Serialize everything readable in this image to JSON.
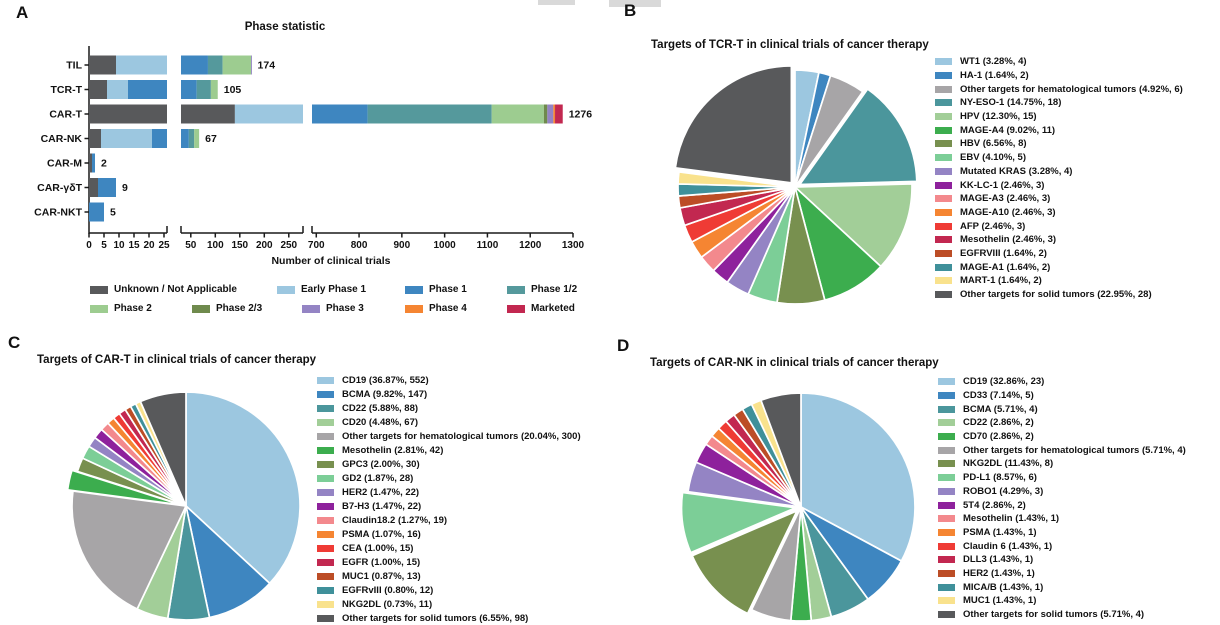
{
  "chart_data": [
    {
      "panel": "A",
      "type": "bar",
      "title": "Phase statistic",
      "xlabel": "Number of clinical trials",
      "orientation": "horizontal-stacked",
      "axis_break": true,
      "categories": [
        "TIL",
        "TCR-T",
        "CAR-T",
        "CAR-NK",
        "CAR-M",
        "CAR-γδT",
        "CAR-NKT"
      ],
      "totals": [
        174,
        105,
        1276,
        67,
        2,
        9,
        5
      ],
      "series": [
        {
          "name": "Unknown / Not Applicable",
          "color": "#58595B",
          "values": [
            9,
            6,
            140,
            4,
            1,
            3,
            0
          ]
        },
        {
          "name": "Early Phase 1",
          "color": "#9CC7E0",
          "values": [
            18,
            7,
            160,
            17,
            0,
            0,
            0
          ]
        },
        {
          "name": "Phase 1",
          "color": "#3E86C0",
          "values": [
            58,
            49,
            520,
            25,
            1,
            6,
            5
          ]
        },
        {
          "name": "Phase 1/2",
          "color": "#55999C",
          "values": [
            30,
            29,
            290,
            11,
            0,
            0,
            0
          ]
        },
        {
          "name": "Phase 2",
          "color": "#9DCC90",
          "values": [
            58,
            14,
            122,
            10,
            0,
            0,
            0
          ]
        },
        {
          "name": "Phase 2/3",
          "color": "#6F8A4D",
          "values": [
            0,
            0,
            8,
            0,
            0,
            0,
            0
          ]
        },
        {
          "name": "Phase 3",
          "color": "#9484C4",
          "values": [
            1,
            0,
            14,
            0,
            0,
            0,
            0
          ]
        },
        {
          "name": "Phase 4",
          "color": "#F58532",
          "values": [
            0,
            0,
            4,
            0,
            0,
            0,
            0
          ]
        },
        {
          "name": "Marketed",
          "color": "#C22850",
          "values": [
            0,
            0,
            18,
            0,
            0,
            0,
            0
          ]
        }
      ],
      "axis_segments": [
        {
          "ticks": [
            0,
            5,
            10,
            15,
            20,
            25
          ]
        },
        {
          "ticks": [
            50,
            100,
            150,
            200,
            250
          ]
        },
        {
          "ticks": [
            700,
            800,
            900,
            1000,
            1100,
            1200,
            1300
          ]
        }
      ]
    },
    {
      "panel": "B",
      "type": "pie",
      "title": "Targets of TCR-T in clinical trials of cancer therapy",
      "slices": [
        {
          "label": "WT1 (3.28%, 4)",
          "value": 3.28,
          "color": "#9CC7E0"
        },
        {
          "label": "HA-1 (1.64%, 2)",
          "value": 1.64,
          "color": "#3E86C0"
        },
        {
          "label": "Other targets for hematological tumors (4.92%, 6)",
          "value": 4.92,
          "color": "#A7A5A7"
        },
        {
          "label": "NY-ESO-1 (14.75%, 18)",
          "value": 14.75,
          "color": "#4B969C",
          "explode": true
        },
        {
          "label": "HPV (12.30%, 15)",
          "value": 12.3,
          "color": "#A2CE98"
        },
        {
          "label": "MAGE-A4 (9.02%, 11)",
          "value": 9.02,
          "color": "#3CAD4E"
        },
        {
          "label": "HBV (6.56%, 8)",
          "value": 6.56,
          "color": "#78904F"
        },
        {
          "label": "EBV (4.10%, 5)",
          "value": 4.1,
          "color": "#7CCE97"
        },
        {
          "label": "Mutated KRAS (3.28%, 4)",
          "value": 3.28,
          "color": "#9484C4"
        },
        {
          "label": "KK-LC-1 (2.46%, 3)",
          "value": 2.46,
          "color": "#8E219C"
        },
        {
          "label": "MAGE-A3 (2.46%, 3)",
          "value": 2.46,
          "color": "#F3898D"
        },
        {
          "label": "MAGE-A10 (2.46%, 3)",
          "value": 2.46,
          "color": "#F58532"
        },
        {
          "label": "AFP (2.46%, 3)",
          "value": 2.46,
          "color": "#EF3B35"
        },
        {
          "label": "Mesothelin (2.46%, 3)",
          "value": 2.46,
          "color": "#C22850"
        },
        {
          "label": "EGFRVIII (1.64%, 2)",
          "value": 1.64,
          "color": "#BC4D26"
        },
        {
          "label": "MAGE-A1 (1.64%, 2)",
          "value": 1.64,
          "color": "#3F909A"
        },
        {
          "label": "MART-1 (1.64%, 2)",
          "value": 1.64,
          "color": "#F9E28D"
        },
        {
          "label": "Other targets for solid tumors (22.95%, 28)",
          "value": 22.95,
          "color": "#58595B",
          "explode": true
        }
      ]
    },
    {
      "panel": "C",
      "type": "pie",
      "title": "Targets of CAR-T in clinical trials of cancer therapy",
      "slices": [
        {
          "label": "CD19 (36.87%, 552)",
          "value": 36.87,
          "color": "#9CC7E0"
        },
        {
          "label": "BCMA (9.82%, 147)",
          "value": 9.82,
          "color": "#3E86C0"
        },
        {
          "label": "CD22 (5.88%, 88)",
          "value": 5.88,
          "color": "#4B969C"
        },
        {
          "label": "CD20 (4.48%, 67)",
          "value": 4.48,
          "color": "#A2CE98"
        },
        {
          "label": "Other targets for hematological tumors (20.04%, 300)",
          "value": 20.04,
          "color": "#A7A5A7"
        },
        {
          "label": "Mesothelin (2.81%, 42)",
          "value": 2.81,
          "color": "#3CAD4E",
          "explode": true
        },
        {
          "label": "GPC3 (2.00%, 30)",
          "value": 2.0,
          "color": "#78904F"
        },
        {
          "label": "GD2 (1.87%, 28)",
          "value": 1.87,
          "color": "#7CCE97"
        },
        {
          "label": "HER2 (1.47%, 22)",
          "value": 1.47,
          "color": "#9484C4"
        },
        {
          "label": "B7-H3 (1.47%, 22)",
          "value": 1.47,
          "color": "#8E219C"
        },
        {
          "label": "Claudin18.2 (1.27%, 19)",
          "value": 1.27,
          "color": "#F3898D"
        },
        {
          "label": "PSMA (1.07%, 16)",
          "value": 1.07,
          "color": "#F58532"
        },
        {
          "label": "CEA (1.00%, 15)",
          "value": 1.0,
          "color": "#EF3B35"
        },
        {
          "label": "EGFR (1.00%, 15)",
          "value": 1.0,
          "color": "#C22850"
        },
        {
          "label": "MUC1 (0.87%, 13)",
          "value": 0.87,
          "color": "#BC4D26"
        },
        {
          "label": "EGFRvIII (0.80%, 12)",
          "value": 0.8,
          "color": "#3F909A"
        },
        {
          "label": "NKG2DL (0.73%, 11)",
          "value": 0.73,
          "color": "#F9E28D"
        },
        {
          "label": "Other targets for solid tumors (6.55%, 98)",
          "value": 6.55,
          "color": "#58595B"
        }
      ]
    },
    {
      "panel": "D",
      "type": "pie",
      "title": "Targets of CAR-NK in clinical trials of cancer therapy",
      "slices": [
        {
          "label": "CD19 (32.86%, 23)",
          "value": 32.86,
          "color": "#9CC7E0"
        },
        {
          "label": "CD33 (7.14%, 5)",
          "value": 7.14,
          "color": "#3E86C0"
        },
        {
          "label": "BCMA (5.71%, 4)",
          "value": 5.71,
          "color": "#4B969C"
        },
        {
          "label": "CD22 (2.86%, 2)",
          "value": 2.86,
          "color": "#A2CE98"
        },
        {
          "label": "CD70 (2.86%, 2)",
          "value": 2.86,
          "color": "#3CAD4E"
        },
        {
          "label": "Other targets for hematological tumors (5.71%, 4)",
          "value": 5.71,
          "color": "#A7A5A7"
        },
        {
          "label": "NKG2DL (11.43%, 8)",
          "value": 11.43,
          "color": "#78904F",
          "explode": true
        },
        {
          "label": "PD-L1 (8.57%, 6)",
          "value": 8.57,
          "color": "#7CCE97",
          "explode": true
        },
        {
          "label": "ROBO1 (4.29%, 3)",
          "value": 4.29,
          "color": "#9484C4"
        },
        {
          "label": "5T4 (2.86%, 2)",
          "value": 2.86,
          "color": "#8E219C"
        },
        {
          "label": "Mesothelin (1.43%, 1)",
          "value": 1.43,
          "color": "#F3898D"
        },
        {
          "label": "PSMA (1.43%, 1)",
          "value": 1.43,
          "color": "#F58532"
        },
        {
          "label": "Claudin 6 (1.43%, 1)",
          "value": 1.43,
          "color": "#EF3B35"
        },
        {
          "label": "DLL3 (1.43%, 1)",
          "value": 1.43,
          "color": "#C22850"
        },
        {
          "label": "HER2 (1.43%, 1)",
          "value": 1.43,
          "color": "#BC4D26"
        },
        {
          "label": "MICA/B (1.43%, 1)",
          "value": 1.43,
          "color": "#3F909A"
        },
        {
          "label": "MUC1 (1.43%, 1)",
          "value": 1.43,
          "color": "#F9E28D"
        },
        {
          "label": "Other targets for solid tumors (5.71%, 4)",
          "value": 5.71,
          "color": "#58595B"
        }
      ]
    }
  ]
}
